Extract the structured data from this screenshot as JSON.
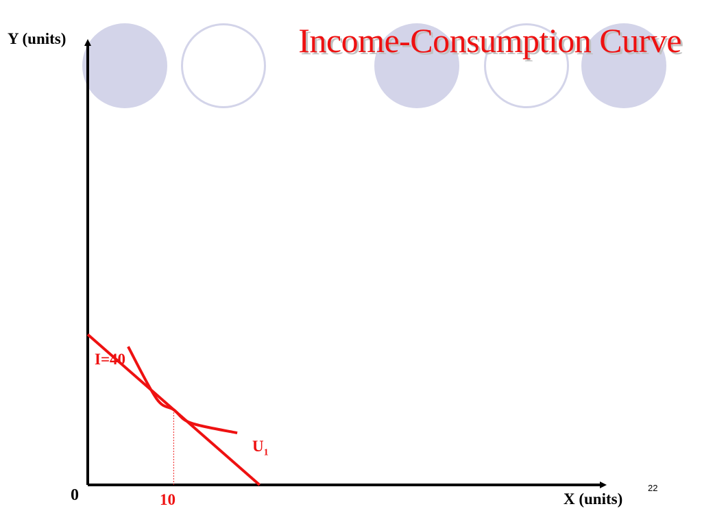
{
  "slide": {
    "title": "Income-Consumption Curve",
    "slide_number": "22"
  },
  "colors": {
    "accent": "#ee1111",
    "axis": "#000000",
    "decor_circle": "#d3d4e9"
  },
  "chart_data": {
    "type": "line",
    "title": "Income-Consumption Curve",
    "xlabel": "X (units)",
    "ylabel": "Y (units)",
    "origin_label": "0",
    "xlim": [
      0,
      60
    ],
    "ylim": [
      0,
      40
    ],
    "x_tick_labels": [
      "10"
    ],
    "grid": false,
    "series": [
      {
        "name": "I=40",
        "kind": "budget-line",
        "points": [
          [
            0,
            13.6
          ],
          [
            20,
            0
          ]
        ]
      },
      {
        "name": "U",
        "name_subscript": "1",
        "kind": "indifference-curve",
        "points": [
          [
            4.7,
            12.5
          ],
          [
            8,
            7.8
          ],
          [
            10,
            6.8
          ],
          [
            12,
            5.6
          ],
          [
            17.4,
            4.7
          ]
        ]
      }
    ],
    "annotations": [
      {
        "kind": "dashed-drop-line",
        "x": 10,
        "from_y": 6.8,
        "to_y": 0
      }
    ]
  }
}
